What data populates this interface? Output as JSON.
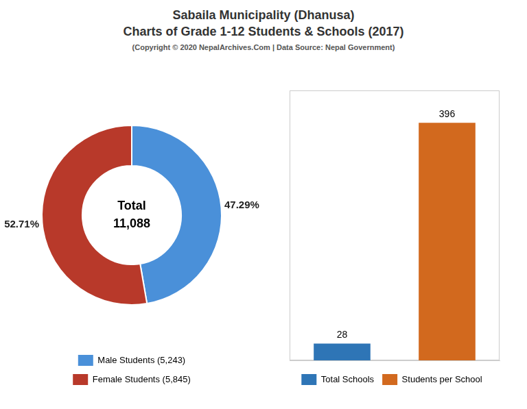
{
  "chart_data": [
    {
      "type": "doughnut",
      "title": [
        "Sabaila Municipality (Dhanusa)",
        "Charts of Grade 1-12 Students & Schools (2017)"
      ],
      "subtitle": "(Copyright © 2020 NepalArchives.Com | Data Source: Nepal Government)",
      "categories": [
        "Male Students (5,243)",
        "Female Students (5,845)"
      ],
      "values": [
        47.29,
        52.71
      ],
      "value_labels": [
        "47.29%",
        "52.71%"
      ],
      "data_labels": true,
      "colors": [
        "#4a90d9",
        "#b8392a"
      ],
      "annotations": [
        "Total",
        "11,088"
      ],
      "legend": "bottom"
    },
    {
      "type": "bar",
      "categories": [
        "Total Schools",
        "Students per School"
      ],
      "values": [
        28,
        396
      ],
      "colors": [
        "#2e75b6",
        "#d2691e"
      ],
      "ylim": [
        0,
        450
      ],
      "data_labels": true,
      "tick_labels": false,
      "grid": false,
      "legend": "bottom"
    }
  ]
}
